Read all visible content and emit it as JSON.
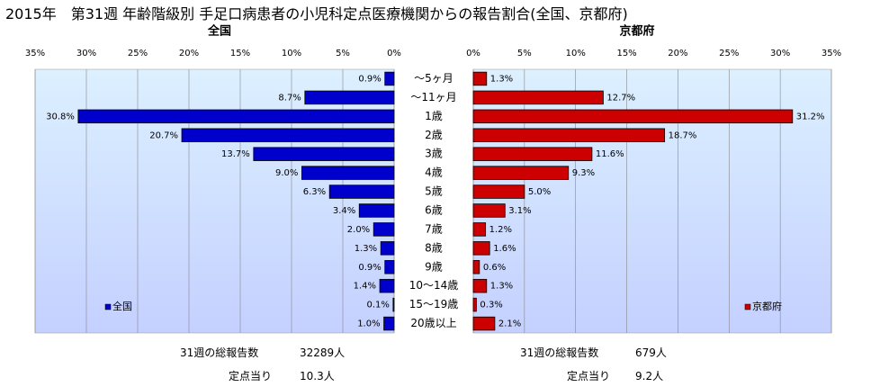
{
  "title": "2015年　第31週 年齢階級別 手足口病患者の小児科定点医療機関からの報告割合(全国、京都府)",
  "chart_data": [
    {
      "type": "bar",
      "orientation": "horizontal",
      "panel_title": "全国",
      "series_name": "全国",
      "color": "#0000cc",
      "categories": [
        "～5ヶ月",
        "～11ヶ月",
        "1歳",
        "2歳",
        "3歳",
        "4歳",
        "5歳",
        "6歳",
        "7歳",
        "8歳",
        "9歳",
        "10～14歳",
        "15～19歳",
        "20歳以上"
      ],
      "values": [
        0.9,
        8.7,
        30.8,
        20.7,
        13.7,
        9.0,
        6.3,
        3.4,
        2.0,
        1.3,
        0.9,
        1.4,
        0.1,
        1.0
      ],
      "value_labels": [
        "0.9%",
        "8.7%",
        "30.8%",
        "20.7%",
        "13.7%",
        "9.0%",
        "6.3%",
        "3.4%",
        "2.0%",
        "1.3%",
        "0.9%",
        "1.4%",
        "0.1%",
        "1.0%"
      ],
      "xlim": [
        0,
        35
      ],
      "ticks": [
        0,
        5,
        10,
        15,
        20,
        25,
        30,
        35
      ],
      "tick_labels": [
        "0%",
        "5%",
        "10%",
        "15%",
        "20%",
        "25%",
        "30%",
        "35%"
      ],
      "direction": "reversed",
      "grid": true,
      "legend_position": "bottom-left"
    },
    {
      "type": "bar",
      "orientation": "horizontal",
      "panel_title": "京都府",
      "series_name": "京都府",
      "color": "#cc0000",
      "categories": [
        "～5ヶ月",
        "～11ヶ月",
        "1歳",
        "2歳",
        "3歳",
        "4歳",
        "5歳",
        "6歳",
        "7歳",
        "8歳",
        "9歳",
        "10～14歳",
        "15～19歳",
        "20歳以上"
      ],
      "values": [
        1.3,
        12.7,
        31.2,
        18.7,
        11.6,
        9.3,
        5.0,
        3.1,
        1.2,
        1.6,
        0.6,
        1.3,
        0.3,
        2.1
      ],
      "value_labels": [
        "1.3%",
        "12.7%",
        "31.2%",
        "18.7%",
        "11.6%",
        "9.3%",
        "5.0%",
        "3.1%",
        "1.2%",
        "1.6%",
        "0.6%",
        "1.3%",
        "0.3%",
        "2.1%"
      ],
      "xlim": [
        0,
        35
      ],
      "ticks": [
        0,
        5,
        10,
        15,
        20,
        25,
        30,
        35
      ],
      "tick_labels": [
        "0%",
        "5%",
        "10%",
        "15%",
        "20%",
        "25%",
        "30%",
        "35%"
      ],
      "direction": "normal",
      "grid": true,
      "legend_position": "bottom-right"
    }
  ],
  "colors": {
    "plot_bg_top": "#dcf0ff",
    "plot_bg_bottom": "#c4d0ff",
    "grid": "#888888"
  },
  "stats": {
    "national_total_label": "31週の総報告数",
    "national_total_value": "32289人",
    "national_per_label": "定点当り",
    "national_per_value": "10.3人",
    "kyoto_total_label": "31週の総報告数",
    "kyoto_total_value": "679人",
    "kyoto_per_label": "定点当り",
    "kyoto_per_value": "9.2人"
  }
}
